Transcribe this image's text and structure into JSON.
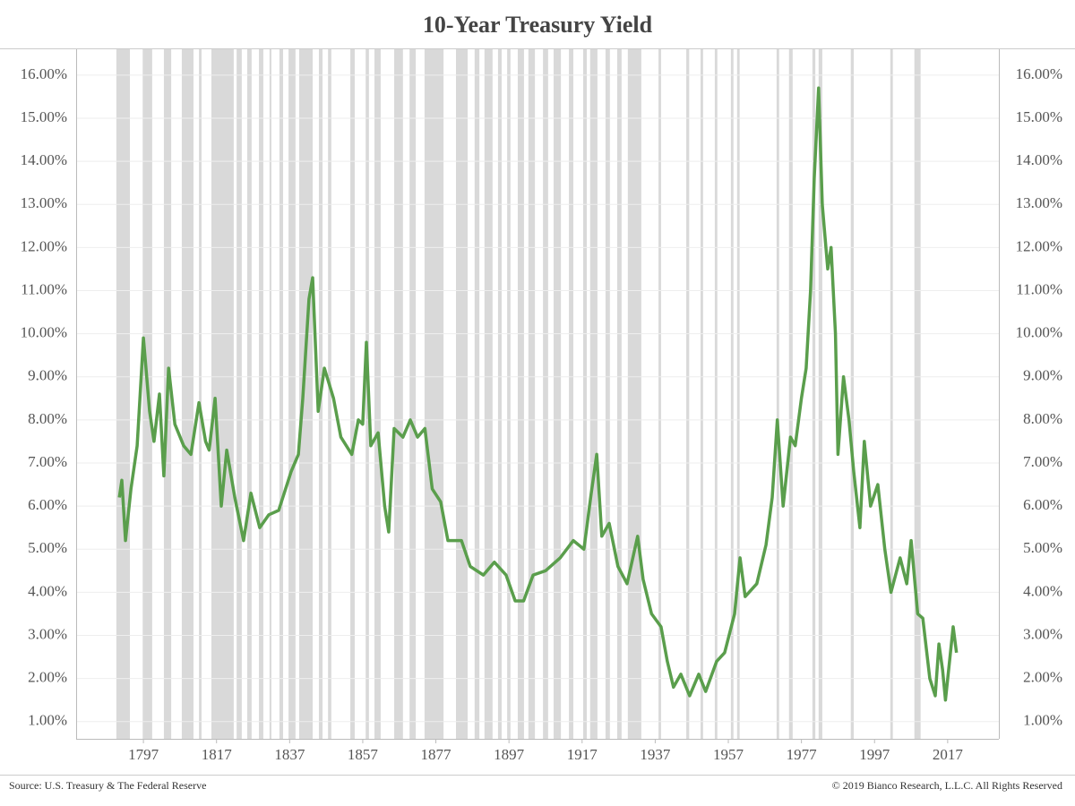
{
  "chart_data": {
    "type": "line",
    "title": "10-Year Treasury Yield",
    "source": "Source: U.S. Treasury & The Federal Reserve",
    "copyright": "© 2019 Bianco Research, L.L.C. All Rights Reserved",
    "color": "#5a9e4c",
    "grid": true,
    "xlim": [
      1778.6,
      2031
    ],
    "ylim": [
      0.6,
      16.6
    ],
    "xticks": [
      1797,
      1817,
      1837,
      1857,
      1877,
      1897,
      1917,
      1937,
      1957,
      1977,
      1997,
      2017
    ],
    "yticks": [
      {
        "value": 1,
        "label": "1.00%"
      },
      {
        "value": 2,
        "label": "2.00%"
      },
      {
        "value": 3,
        "label": "3.00%"
      },
      {
        "value": 4,
        "label": "4.00%"
      },
      {
        "value": 5,
        "label": "5.00%"
      },
      {
        "value": 6,
        "label": "6.00%"
      },
      {
        "value": 7,
        "label": "7.00%"
      },
      {
        "value": 8,
        "label": "8.00%"
      },
      {
        "value": 9,
        "label": "9.00%"
      },
      {
        "value": 10,
        "label": "10.00%"
      },
      {
        "value": 11,
        "label": "11.00%"
      },
      {
        "value": 12,
        "label": "12.00%"
      },
      {
        "value": 13,
        "label": "13.00%"
      },
      {
        "value": 14,
        "label": "14.00%"
      },
      {
        "value": 15,
        "label": "15.00%"
      },
      {
        "value": 16,
        "label": "16.00%"
      }
    ],
    "recession_color": "#d9d9d9",
    "recessions": [
      [
        1789.6,
        1793.3
      ],
      [
        1796.8,
        1799.4
      ],
      [
        1802.6,
        1804.6
      ],
      [
        1807.5,
        1810.7
      ],
      [
        1812.2,
        1812.9
      ],
      [
        1815.6,
        1821.7
      ],
      [
        1822.5,
        1823.9
      ],
      [
        1825.4,
        1826.6
      ],
      [
        1828.6,
        1829.8
      ],
      [
        1831.5,
        1832
      ],
      [
        1834.2,
        1835.2
      ],
      [
        1836.7,
        1838.6
      ],
      [
        1839.6,
        1843.3
      ],
      [
        1845,
        1846
      ],
      [
        1847.5,
        1848.4
      ],
      [
        1853.6,
        1854.8
      ],
      [
        1857.8,
        1858.7
      ],
      [
        1860.2,
        1861.9
      ],
      [
        1865.6,
        1868
      ],
      [
        1869.8,
        1871.5
      ],
      [
        1873.9,
        1879.1
      ],
      [
        1882.5,
        1885.7
      ],
      [
        1887.6,
        1888.9
      ],
      [
        1890.3,
        1892.5
      ],
      [
        1894,
        1895
      ],
      [
        1896.5,
        1897.4
      ],
      [
        1899.4,
        1901.1
      ],
      [
        1902.3,
        1904.1
      ],
      [
        1906.3,
        1907.7
      ],
      [
        1909.2,
        1911.2
      ],
      [
        1913.4,
        1914.6
      ],
      [
        1917.3,
        1918.3
      ],
      [
        1919.2,
        1921.2
      ],
      [
        1923.4,
        1924.6
      ],
      [
        1926.6,
        1927.8
      ],
      [
        1929.5,
        1933.2
      ],
      [
        1937.9,
        1938.6
      ],
      [
        1945.5,
        1946.3
      ],
      [
        1949.4,
        1950.1
      ],
      [
        1953.3,
        1954
      ],
      [
        1957.7,
        1958.4
      ],
      [
        1959.4,
        1960.1
      ],
      [
        1970.2,
        1970.9
      ],
      [
        1973.6,
        1974.6
      ],
      [
        1980,
        1980.8
      ],
      [
        1981.7,
        1982.7
      ],
      [
        1990.5,
        1991.3
      ],
      [
        2001.3,
        2002
      ],
      [
        2007.9,
        2009.6
      ]
    ],
    "x": [
      1790.4,
      1791.1,
      1792.1,
      1793.6,
      1795.3,
      1797,
      1798.7,
      1799.9,
      1801.4,
      1802.6,
      1803.9,
      1805.6,
      1808,
      1810,
      1812.2,
      1814,
      1815,
      1816.6,
      1818.3,
      1819.8,
      1822,
      1824.4,
      1826.4,
      1828.8,
      1831.3,
      1834,
      1837.4,
      1839.4,
      1840.6,
      1842.3,
      1843.3,
      1844.8,
      1846.5,
      1849,
      1851,
      1854,
      1855.8,
      1857,
      1858,
      1859.2,
      1861.2,
      1863,
      1864.1,
      1865.6,
      1868,
      1870,
      1872,
      1874,
      1876,
      1878.3,
      1880.3,
      1884,
      1886.4,
      1890,
      1893,
      1896.2,
      1898.7,
      1901,
      1903.6,
      1907,
      1911,
      1914.6,
      1917.5,
      1919.5,
      1921,
      1922.4,
      1924.4,
      1926.8,
      1929.3,
      1932.2,
      1933.7,
      1936,
      1938.6,
      1940.3,
      1942,
      1944,
      1946.4,
      1948.9,
      1950.8,
      1953.8,
      1956,
      1958.7,
      1960.2,
      1961.6,
      1964.8,
      1967.3,
      1969,
      1970.4,
      1972,
      1974,
      1975.3,
      1977,
      1978.3,
      1979.5,
      1980.5,
      1981.7,
      1982.7,
      1984.2,
      1985.1,
      1986.3,
      1987,
      1988.5,
      1990,
      1991.3,
      1993,
      1994.2,
      1995.9,
      1997.9,
      1999.8,
      2001.5,
      2004,
      2005.8,
      2007,
      2008.8,
      2010.2,
      2012.1,
      2013.6,
      2014.6,
      2015.6,
      2016.4,
      2018.5,
      2019.4
    ],
    "values": [
      6.2,
      6.6,
      5.2,
      6.4,
      7.4,
      9.9,
      8.2,
      7.5,
      8.6,
      6.7,
      9.2,
      7.9,
      7.4,
      7.2,
      8.4,
      7.5,
      7.3,
      8.5,
      6.0,
      7.3,
      6.2,
      5.2,
      6.3,
      5.5,
      5.8,
      5.9,
      6.8,
      7.2,
      8.5,
      10.8,
      11.3,
      8.2,
      9.2,
      8.5,
      7.6,
      7.2,
      8.0,
      7.9,
      9.8,
      7.4,
      7.7,
      6.0,
      5.4,
      7.8,
      7.6,
      8.0,
      7.6,
      7.8,
      6.4,
      6.1,
      5.2,
      5.2,
      4.6,
      4.4,
      4.7,
      4.4,
      3.8,
      3.8,
      4.4,
      4.5,
      4.8,
      5.2,
      5.0,
      6.3,
      7.2,
      5.3,
      5.6,
      4.6,
      4.2,
      5.3,
      4.3,
      3.5,
      3.2,
      2.4,
      1.8,
      2.1,
      1.6,
      2.1,
      1.7,
      2.4,
      2.6,
      3.5,
      4.8,
      3.9,
      4.2,
      5.1,
      6.2,
      8.0,
      6.0,
      7.6,
      7.4,
      8.5,
      9.2,
      11.0,
      13.6,
      15.7,
      13.0,
      11.5,
      12.0,
      10.0,
      7.2,
      9.0,
      8.0,
      6.8,
      5.5,
      7.5,
      6.0,
      6.5,
      5.0,
      4.0,
      4.8,
      4.2,
      5.2,
      3.5,
      3.4,
      2.0,
      1.6,
      2.8,
      2.2,
      1.5,
      3.2,
      2.6
    ]
  }
}
